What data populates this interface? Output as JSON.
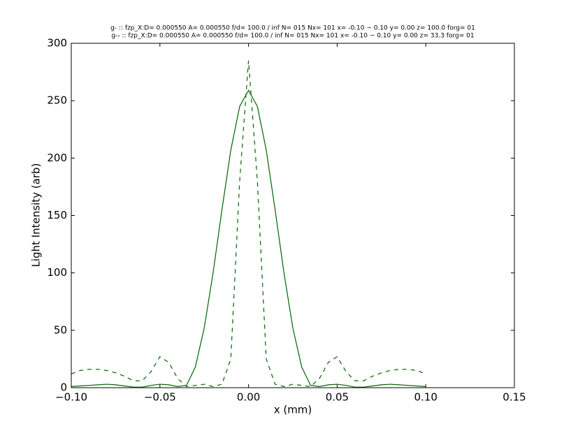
{
  "chart_data": {
    "type": "line",
    "title": [
      "g- :: fzp_X:D= 0.000550 A= 0.000550 f/d= 100.0 / inf N= 015 Nx= 101 x= -0.10 ~ 0.10 y= 0.00 z= 100.0 forg= 01",
      "g-- :: fzp_X:D= 0.000550 A= 0.000550 f/d= 100.0 / inf N= 015 Nx= 101 x= -0.10 ~ 0.10 y= 0.00 z= 33.3 forg= 01"
    ],
    "x_label": "x (mm)",
    "y_label": "Light Intensity (arb)",
    "x": [
      -0.1,
      -0.095,
      -0.09,
      -0.085,
      -0.08,
      -0.075,
      -0.07,
      -0.065,
      -0.06,
      -0.055,
      -0.05,
      -0.045,
      -0.04,
      -0.035,
      -0.03,
      -0.025,
      -0.02,
      -0.015,
      -0.01,
      -0.005,
      0,
      0.005,
      0.01,
      0.015,
      0.02,
      0.025,
      0.03,
      0.035,
      0.04,
      0.045,
      0.05,
      0.055,
      0.06,
      0.065,
      0.07,
      0.075,
      0.08,
      0.085,
      0.09,
      0.095,
      0.1
    ],
    "series": [
      {
        "name": "g-",
        "color": "#006400",
        "dash": "solid",
        "values": [
          1,
          1.5,
          2,
          2.5,
          3,
          2.5,
          1.5,
          0.5,
          0.5,
          2,
          3,
          2.5,
          1,
          2,
          18,
          52,
          100,
          155,
          207,
          245,
          259,
          245,
          207,
          155,
          100,
          52,
          18,
          2,
          1,
          2.5,
          3,
          2,
          0.5,
          0.5,
          1.5,
          2.5,
          3,
          2.5,
          2,
          1.5,
          1
        ]
      },
      {
        "name": "g--",
        "color": "#006400",
        "dash": "dashed",
        "values": [
          12,
          15,
          16,
          16,
          15,
          13,
          10,
          6,
          6,
          14,
          27,
          22,
          8,
          1,
          2,
          3,
          1,
          3,
          25,
          180,
          285,
          180,
          25,
          3,
          1,
          3,
          2,
          1,
          8,
          22,
          27,
          14,
          6,
          6,
          10,
          13,
          15,
          16,
          16,
          15,
          12
        ]
      }
    ],
    "xlim": [
      -0.1,
      0.15
    ],
    "xticks": [
      {
        "value": -0.1,
        "label": "−0.10"
      },
      {
        "value": -0.05,
        "label": "−0.05"
      },
      {
        "value": 0,
        "label": "0.00"
      },
      {
        "value": 0.05,
        "label": "0.05"
      },
      {
        "value": 0.1,
        "label": "0.10"
      },
      {
        "value": 0.15,
        "label": "0.15"
      }
    ],
    "ylim": [
      0,
      300
    ],
    "yticks": [
      0,
      50,
      100,
      150,
      200,
      250,
      300
    ]
  }
}
